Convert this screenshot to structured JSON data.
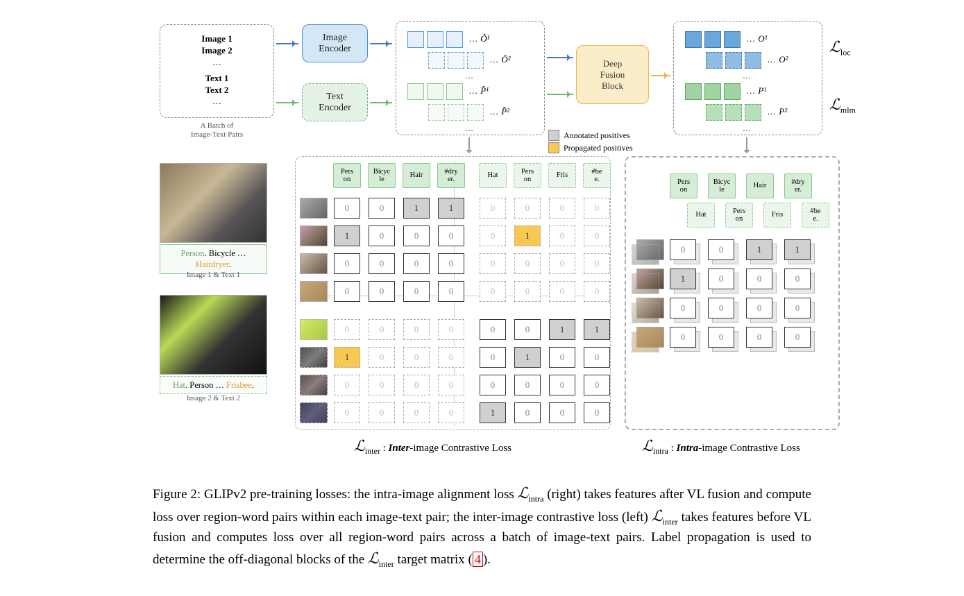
{
  "inputs": {
    "img1": "Image 1",
    "img2": "Image 2",
    "txt1": "Text 1",
    "txt2": "Text 2",
    "ellipsis": "…",
    "caption_l1": "A Batch of",
    "caption_l2": "Image-Text Pairs"
  },
  "encoders": {
    "image_l1": "Image",
    "image_l2": "Encoder",
    "text_l1": "Text",
    "text_l2": "Encoder"
  },
  "fusion": {
    "l1": "Deep",
    "l2": "Fusion",
    "l3": "Block"
  },
  "features": {
    "O1ring": "Ô¹",
    "O2ring": "Ô²",
    "P1ring": "P̂¹",
    "P2ring": "P̂²",
    "O1": "O¹",
    "O2": "O²",
    "P1": "P¹",
    "P2": "P²",
    "dots": "…"
  },
  "losses": {
    "loc": "loc",
    "mlm": "mlm",
    "inter": "inter",
    "intra": "intra"
  },
  "legend": {
    "annotated": "Annotated positives",
    "propagated": "Propagated positives"
  },
  "samples": {
    "cap1_person": "Person",
    "cap1_mid": ". Bicycle …",
    "cap1_hair": "Hairdryer",
    "cap1_end": ".",
    "sub1": "Image 1 & Text 1",
    "cap2_hat": "Hat",
    "cap2_mid": ". Person … ",
    "cap2_fris": "Frisbee",
    "cap2_end": ".",
    "sub2": "Image 2 & Text 2"
  },
  "tokens": {
    "t1": "Pers\non",
    "t2": "Bicyc\nle",
    "t3": "Hair",
    "t4": "#dry\ner.",
    "t5": "Hat",
    "t6": "Pers\non",
    "t7": "Fris",
    "t8": "#be\ne."
  },
  "matrix_inter": {
    "rows": [
      {
        "img": "crop-dryer",
        "style": "solid",
        "vals": [
          {
            "v": "0",
            "s": "s"
          },
          {
            "v": "0",
            "s": "s"
          },
          {
            "v": "1",
            "s": "s",
            "bg": "g"
          },
          {
            "v": "1",
            "s": "s",
            "bg": "g"
          },
          {
            "v": "0",
            "s": "d"
          },
          {
            "v": "0",
            "s": "d"
          },
          {
            "v": "0",
            "s": "d"
          },
          {
            "v": "0",
            "s": "d"
          }
        ]
      },
      {
        "img": "crop-person1",
        "style": "solid",
        "vals": [
          {
            "v": "1",
            "s": "s",
            "bg": "g"
          },
          {
            "v": "0",
            "s": "s"
          },
          {
            "v": "0",
            "s": "s"
          },
          {
            "v": "0",
            "s": "s"
          },
          {
            "v": "0",
            "s": "d"
          },
          {
            "v": "1",
            "s": "d",
            "bg": "o"
          },
          {
            "v": "0",
            "s": "d"
          },
          {
            "v": "0",
            "s": "d"
          }
        ]
      },
      {
        "img": "crop-glasses",
        "style": "solid",
        "vals": [
          {
            "v": "0",
            "s": "s"
          },
          {
            "v": "0",
            "s": "s"
          },
          {
            "v": "0",
            "s": "s"
          },
          {
            "v": "0",
            "s": "s"
          },
          {
            "v": "0",
            "s": "d"
          },
          {
            "v": "0",
            "s": "d"
          },
          {
            "v": "0",
            "s": "d"
          },
          {
            "v": "0",
            "s": "d"
          }
        ]
      },
      {
        "img": "crop-loaf",
        "style": "solid",
        "vals": [
          {
            "v": "0",
            "s": "s"
          },
          {
            "v": "0",
            "s": "s"
          },
          {
            "v": "0",
            "s": "s"
          },
          {
            "v": "0",
            "s": "s"
          },
          {
            "v": "0",
            "s": "d"
          },
          {
            "v": "0",
            "s": "d"
          },
          {
            "v": "0",
            "s": "d"
          },
          {
            "v": "0",
            "s": "d"
          }
        ]
      },
      {
        "img": "crop-frisbee",
        "style": "dashed",
        "vals": [
          {
            "v": "0",
            "s": "d"
          },
          {
            "v": "0",
            "s": "d"
          },
          {
            "v": "0",
            "s": "d"
          },
          {
            "v": "0",
            "s": "d"
          },
          {
            "v": "0",
            "s": "s"
          },
          {
            "v": "0",
            "s": "s"
          },
          {
            "v": "1",
            "s": "s",
            "bg": "g"
          },
          {
            "v": "1",
            "s": "s",
            "bg": "g"
          }
        ]
      },
      {
        "img": "crop-person2",
        "style": "dashed",
        "vals": [
          {
            "v": "1",
            "s": "d",
            "bg": "o"
          },
          {
            "v": "0",
            "s": "d"
          },
          {
            "v": "0",
            "s": "d"
          },
          {
            "v": "0",
            "s": "d"
          },
          {
            "v": "0",
            "s": "s"
          },
          {
            "v": "1",
            "s": "s",
            "bg": "g"
          },
          {
            "v": "0",
            "s": "s"
          },
          {
            "v": "0",
            "s": "s"
          }
        ]
      },
      {
        "img": "crop-face2",
        "style": "dashed",
        "vals": [
          {
            "v": "0",
            "s": "d"
          },
          {
            "v": "0",
            "s": "d"
          },
          {
            "v": "0",
            "s": "d"
          },
          {
            "v": "0",
            "s": "d"
          },
          {
            "v": "0",
            "s": "s"
          },
          {
            "v": "0",
            "s": "s"
          },
          {
            "v": "0",
            "s": "s"
          },
          {
            "v": "0",
            "s": "s"
          }
        ]
      },
      {
        "img": "crop-hat",
        "style": "dashed",
        "vals": [
          {
            "v": "0",
            "s": "d"
          },
          {
            "v": "0",
            "s": "d"
          },
          {
            "v": "0",
            "s": "d"
          },
          {
            "v": "0",
            "s": "d"
          },
          {
            "v": "1",
            "s": "s",
            "bg": "g"
          },
          {
            "v": "0",
            "s": "s"
          },
          {
            "v": "0",
            "s": "s"
          },
          {
            "v": "0",
            "s": "s"
          }
        ]
      }
    ]
  },
  "matrix_intra": {
    "rows": [
      {
        "img": "crop-dryer",
        "vals": [
          {
            "v": "0"
          },
          {
            "v": "0"
          },
          {
            "v": "1",
            "bg": "g"
          },
          {
            "v": "1",
            "bg": "g"
          }
        ]
      },
      {
        "img": "crop-person1",
        "vals": [
          {
            "v": "1",
            "bg": "g"
          },
          {
            "v": "0"
          },
          {
            "v": "0"
          },
          {
            "v": "0"
          }
        ]
      },
      {
        "img": "crop-glasses",
        "vals": [
          {
            "v": "0"
          },
          {
            "v": "0"
          },
          {
            "v": "0"
          },
          {
            "v": "0"
          }
        ]
      },
      {
        "img": "crop-loaf",
        "vals": [
          {
            "v": "0"
          },
          {
            "v": "0"
          },
          {
            "v": "0"
          },
          {
            "v": "0"
          }
        ]
      }
    ]
  },
  "matrix_captions": {
    "inter_prefix": " : ",
    "inter_bold": "Inter",
    "inter_rest": "-image Contrastive Loss",
    "intra_prefix": " : ",
    "intra_bold": "Intra",
    "intra_rest": "-image Contrastive Loss"
  },
  "caption": {
    "fig": "Figure 2: GLIPv2 pre-training losses: the intra-image alignment loss ",
    "p2": " (right) takes features after VL fusion and compute loss over region-word pairs within each image-text pair; the inter-image contrastive loss (left) ",
    "p3": " takes features before VL fusion and computes loss over all region-word pairs across a batch of image-text pairs. Label propagation is used to determine the off-diagonal blocks of the ",
    "p4": " target matrix (",
    "ref": "4",
    "p5": ")."
  },
  "colors": {
    "blue_light": "#d4e7f7",
    "blue_border": "#4a90d9",
    "green_light": "#e5f3e6",
    "green_border": "#6bb66f",
    "orange_fill": "#fcedc9",
    "orange_border": "#e8b84a",
    "gray_cell": "#d0d0d0",
    "orange_cell": "#f8c852"
  }
}
